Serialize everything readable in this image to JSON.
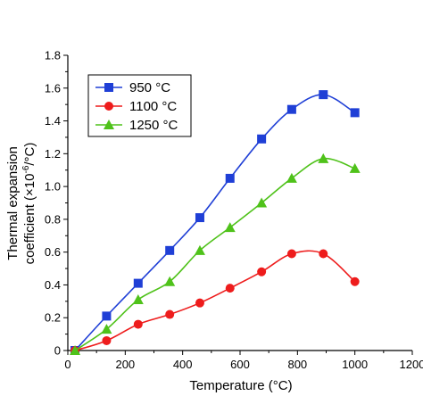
{
  "chart_data": {
    "type": "line",
    "title": "",
    "xlabel": "Temperature (°C)",
    "ylabel_line1": "Thermal expansion",
    "ylabel_line2_prefix": "coefficient (×10",
    "ylabel_line2_exp": "-6",
    "ylabel_line2_suffix": "/°C)",
    "xlim": [
      0,
      1200
    ],
    "ylim": [
      0,
      1.8
    ],
    "xticks": [
      "0",
      "200",
      "400",
      "600",
      "800",
      "1000",
      "1200"
    ],
    "yticks": [
      "0",
      "0.2",
      "0.4",
      "0.6",
      "0.8",
      "1.0",
      "1.2",
      "1.4",
      "1.6",
      "1.8"
    ],
    "grid": false,
    "legend_position": "top-left",
    "series": [
      {
        "name": "950 °C",
        "color": "#1f3fd6",
        "marker": "square",
        "x": [
          25,
          135,
          245,
          355,
          460,
          565,
          675,
          780,
          890,
          1000
        ],
        "y": [
          0.0,
          0.21,
          0.41,
          0.61,
          0.81,
          1.05,
          1.29,
          1.47,
          1.56,
          1.45
        ]
      },
      {
        "name": "1100 °C",
        "color": "#ee1c1c",
        "marker": "circle",
        "x": [
          25,
          135,
          245,
          355,
          460,
          565,
          675,
          780,
          890,
          1000
        ],
        "y": [
          0.0,
          0.06,
          0.16,
          0.22,
          0.29,
          0.38,
          0.48,
          0.59,
          0.59,
          0.42
        ]
      },
      {
        "name": "1250 °C",
        "color": "#4fc21a",
        "marker": "triangle",
        "x": [
          25,
          135,
          245,
          355,
          460,
          565,
          675,
          780,
          890,
          1000
        ],
        "y": [
          0.0,
          0.13,
          0.31,
          0.42,
          0.61,
          0.75,
          0.9,
          1.05,
          1.17,
          1.11
        ]
      }
    ]
  }
}
